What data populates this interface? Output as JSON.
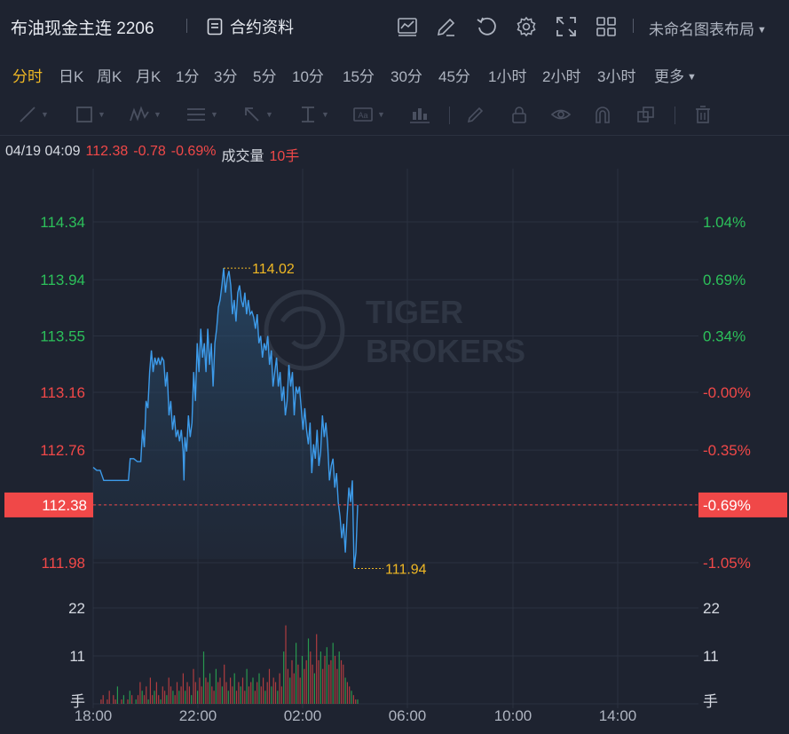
{
  "header": {
    "title": "布油现金主连 2206",
    "contract_label": "合约资料",
    "layout_label": "未命名图表布局"
  },
  "periods": [
    "分时",
    "日K",
    "周K",
    "月K",
    "1分",
    "3分",
    "5分",
    "10分",
    "15分",
    "30分",
    "45分",
    "1小时",
    "2小时",
    "3小时",
    "更多"
  ],
  "active_period": "分时",
  "info": {
    "datetime": "04/19 04:09",
    "price": "112.38",
    "change": "-0.78",
    "change_pct": "-0.69%",
    "volume_label": "成交量",
    "volume_value": "10手"
  },
  "chart_data": {
    "type": "line",
    "price_axis": {
      "ticks": [
        "114.34",
        "113.94",
        "113.55",
        "113.16",
        "112.76",
        "111.98"
      ],
      "tick_values": [
        114.34,
        113.94,
        113.55,
        113.16,
        112.76,
        111.98
      ],
      "tick_colors": [
        "#2cc05a",
        "#2cc05a",
        "#2cc05a",
        "#f04848",
        "#f04848",
        "#f04848"
      ],
      "current": "112.38",
      "current_value": 112.38
    },
    "pct_axis": {
      "ticks": [
        "1.04%",
        "0.69%",
        "0.34%",
        "-0.00%",
        "-0.35%",
        "-1.05%"
      ],
      "current": "-0.69%"
    },
    "volume_axis": {
      "ticks": [
        "22",
        "11"
      ],
      "tick_values": [
        22,
        11
      ],
      "unit": "手"
    },
    "time_axis": [
      "18:00",
      "22:00",
      "02:00",
      "06:00",
      "10:00",
      "14:00"
    ],
    "high": {
      "label": "114.02",
      "value": 114.02
    },
    "low": {
      "label": "111.94",
      "value": 111.94
    },
    "watermark": [
      "TIGER",
      "BROKERS"
    ],
    "series_color": "#3d9bea",
    "price_points": [
      [
        0,
        112.64
      ],
      [
        4,
        112.62
      ],
      [
        8,
        112.62
      ],
      [
        12,
        112.55
      ],
      [
        16,
        112.55
      ],
      [
        20,
        112.55
      ],
      [
        24,
        112.55
      ],
      [
        28,
        112.55
      ],
      [
        32,
        112.55
      ],
      [
        36,
        112.55
      ],
      [
        40,
        112.55
      ],
      [
        42,
        112.7
      ],
      [
        46,
        112.7
      ],
      [
        50,
        112.68
      ],
      [
        54,
        112.68
      ],
      [
        56,
        112.9
      ],
      [
        58,
        112.78
      ],
      [
        60,
        113.1
      ],
      [
        62,
        113.05
      ],
      [
        64,
        113.3
      ],
      [
        66,
        113.45
      ],
      [
        68,
        113.3
      ],
      [
        70,
        113.4
      ],
      [
        72,
        113.35
      ],
      [
        74,
        113.4
      ],
      [
        76,
        113.35
      ],
      [
        78,
        113.4
      ],
      [
        80,
        113.38
      ],
      [
        82,
        113.2
      ],
      [
        84,
        113.3
      ],
      [
        86,
        113.0
      ],
      [
        88,
        113.1
      ],
      [
        90,
        112.9
      ],
      [
        92,
        113.0
      ],
      [
        94,
        112.85
      ],
      [
        96,
        112.9
      ],
      [
        98,
        112.82
      ],
      [
        100,
        112.9
      ],
      [
        102,
        112.75
      ],
      [
        103,
        112.55
      ],
      [
        104,
        112.85
      ],
      [
        106,
        112.75
      ],
      [
        108,
        113.0
      ],
      [
        110,
        112.85
      ],
      [
        112,
        112.95
      ],
      [
        114,
        113.3
      ],
      [
        116,
        113.1
      ],
      [
        118,
        113.5
      ],
      [
        120,
        113.3
      ],
      [
        122,
        113.6
      ],
      [
        124,
        113.4
      ],
      [
        126,
        113.5
      ],
      [
        128,
        113.3
      ],
      [
        130,
        113.6
      ],
      [
        132,
        113.35
      ],
      [
        134,
        113.5
      ],
      [
        136,
        113.2
      ],
      [
        138,
        113.5
      ],
      [
        140,
        113.6
      ],
      [
        142,
        113.75
      ],
      [
        144,
        113.8
      ],
      [
        146,
        113.9
      ],
      [
        148,
        114.02
      ],
      [
        150,
        113.85
      ],
      [
        152,
        113.95
      ],
      [
        154,
        114.0
      ],
      [
        156,
        113.9
      ],
      [
        158,
        113.7
      ],
      [
        160,
        113.8
      ],
      [
        162,
        113.65
      ],
      [
        164,
        113.85
      ],
      [
        166,
        113.9
      ],
      [
        168,
        113.8
      ],
      [
        170,
        113.75
      ],
      [
        172,
        113.85
      ],
      [
        174,
        113.7
      ],
      [
        176,
        113.8
      ],
      [
        178,
        113.7
      ],
      [
        180,
        113.72
      ],
      [
        182,
        113.68
      ],
      [
        184,
        113.6
      ],
      [
        186,
        113.7
      ],
      [
        188,
        113.5
      ],
      [
        190,
        113.55
      ],
      [
        192,
        113.4
      ],
      [
        194,
        113.5
      ],
      [
        196,
        113.45
      ],
      [
        198,
        113.55
      ],
      [
        200,
        113.35
      ],
      [
        202,
        113.45
      ],
      [
        204,
        113.2
      ],
      [
        206,
        113.3
      ],
      [
        208,
        113.4
      ],
      [
        210,
        113.2
      ],
      [
        212,
        113.3
      ],
      [
        214,
        113.1
      ],
      [
        216,
        113.2
      ],
      [
        218,
        113.0
      ],
      [
        220,
        113.1
      ],
      [
        222,
        113.35
      ],
      [
        224,
        113.2
      ],
      [
        226,
        113.3
      ],
      [
        228,
        113.0
      ],
      [
        230,
        113.2
      ],
      [
        232,
        113.15
      ],
      [
        234,
        113.2
      ],
      [
        236,
        113.05
      ],
      [
        238,
        112.9
      ],
      [
        240,
        113.05
      ],
      [
        242,
        112.9
      ],
      [
        244,
        112.8
      ],
      [
        246,
        112.95
      ],
      [
        248,
        112.6
      ],
      [
        250,
        112.8
      ],
      [
        252,
        112.7
      ],
      [
        254,
        112.9
      ],
      [
        256,
        112.65
      ],
      [
        258,
        112.75
      ],
      [
        260,
        113.0
      ],
      [
        262,
        112.85
      ],
      [
        264,
        112.95
      ],
      [
        266,
        112.8
      ],
      [
        268,
        112.55
      ],
      [
        270,
        112.65
      ],
      [
        272,
        112.7
      ],
      [
        274,
        112.5
      ],
      [
        276,
        112.6
      ],
      [
        278,
        112.4
      ],
      [
        280,
        112.3
      ],
      [
        282,
        112.15
      ],
      [
        284,
        112.25
      ],
      [
        286,
        112.05
      ],
      [
        288,
        112.3
      ],
      [
        290,
        112.5
      ],
      [
        292,
        112.4
      ],
      [
        294,
        112.55
      ],
      [
        296,
        111.94
      ],
      [
        298,
        112.05
      ],
      [
        300,
        112.38
      ]
    ],
    "volume_bars": [
      0,
      1,
      2,
      0,
      1,
      3,
      0,
      2,
      1,
      4,
      0,
      1,
      2,
      0,
      1,
      3,
      2,
      0,
      1,
      2,
      5,
      3,
      2,
      4,
      1,
      6,
      2,
      3,
      5,
      2,
      1,
      4,
      3,
      2,
      6,
      4,
      3,
      2,
      5,
      3,
      4,
      7,
      3,
      5,
      4,
      2,
      8,
      5,
      3,
      6,
      4,
      12,
      6,
      5,
      7,
      4,
      3,
      8,
      5,
      6,
      4,
      9,
      5,
      3,
      6,
      4,
      7,
      3,
      5,
      4,
      6,
      3,
      8,
      4,
      5,
      6,
      3,
      5,
      7,
      4,
      6,
      3,
      5,
      8,
      4,
      6,
      5,
      3,
      7,
      4,
      12,
      18,
      8,
      6,
      10,
      7,
      14,
      9,
      6,
      11,
      8,
      10,
      15,
      12,
      9,
      7,
      16,
      10,
      12,
      8,
      11,
      13,
      9,
      10,
      14,
      11,
      8,
      12,
      10,
      9,
      6,
      5,
      4,
      3,
      2,
      1,
      1,
      0
    ]
  }
}
